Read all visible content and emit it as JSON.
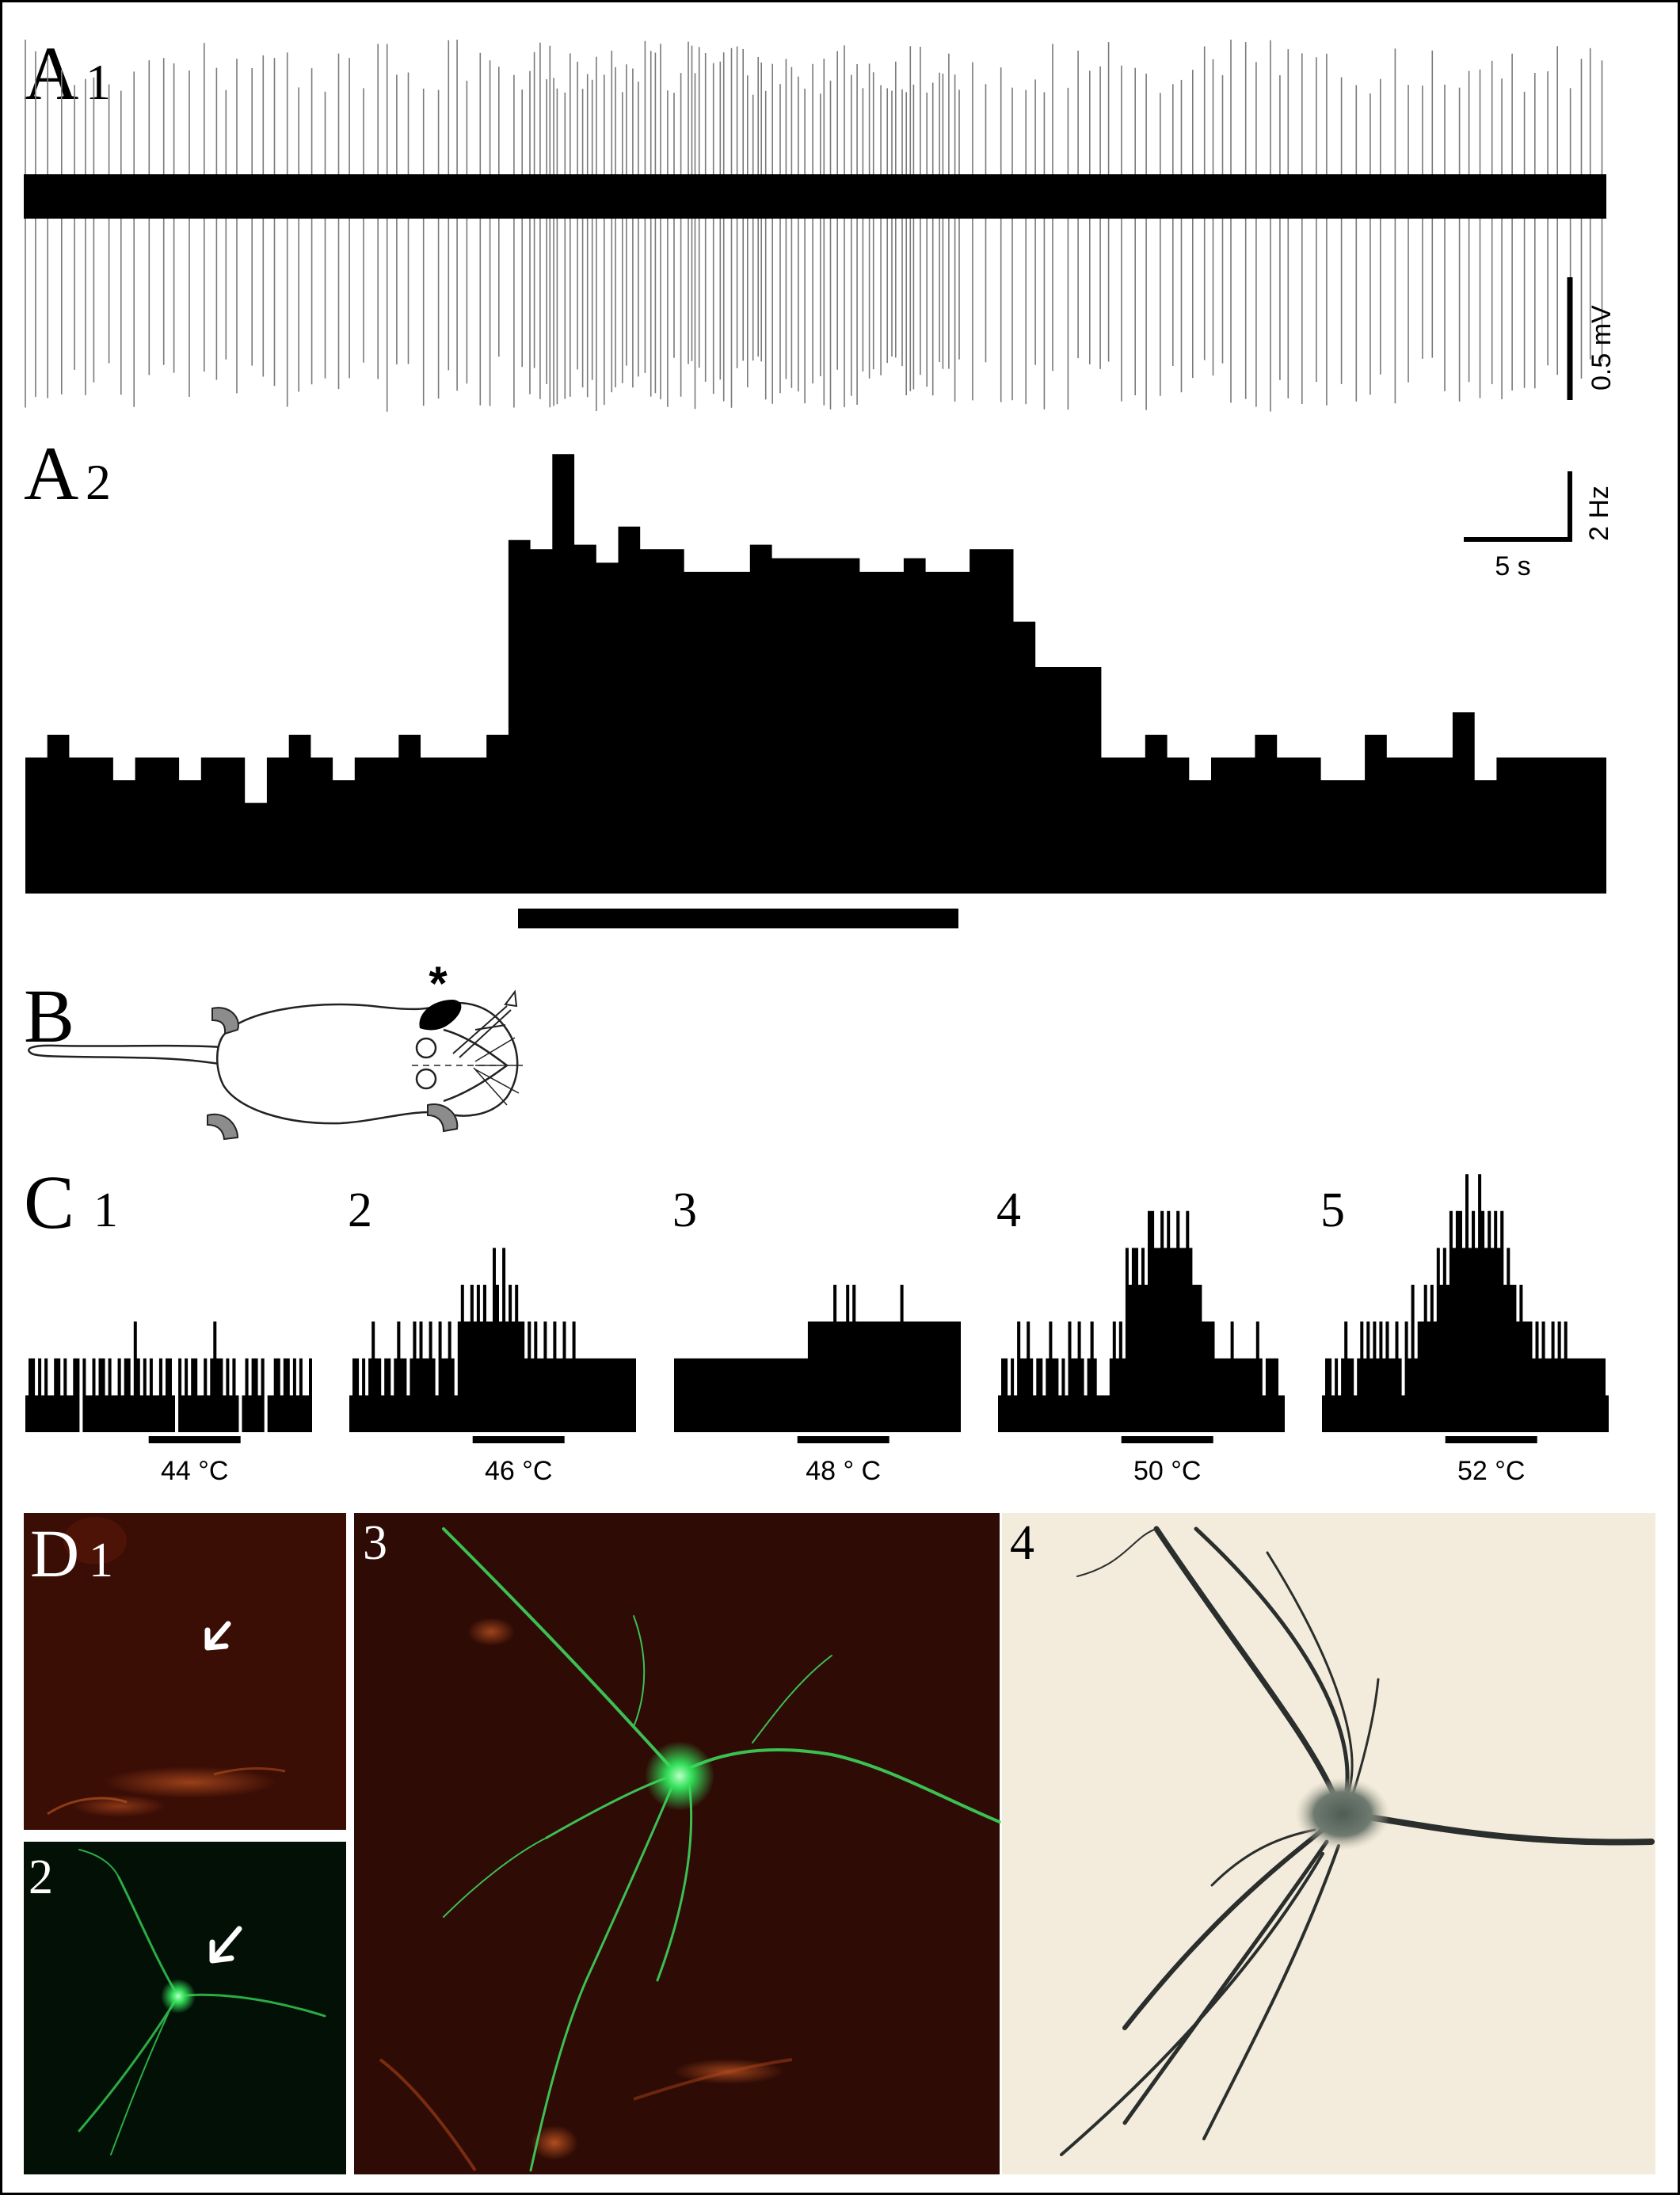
{
  "panels": {
    "A1": {
      "letter": "A",
      "number": "1",
      "scale_label": "0.5 mV"
    },
    "A2": {
      "letter": "A",
      "number": "2",
      "scale_y_label": "2 Hz",
      "scale_x_label": "5 s"
    },
    "B": {
      "letter": "B",
      "marker": "*"
    },
    "C": {
      "letter": "C"
    },
    "D": {
      "letter": "D",
      "sub_labels": [
        "1",
        "2",
        "3",
        "4"
      ]
    }
  },
  "colors": {
    "trace": "#7a7a7a",
    "trace_core": "#000000",
    "bars": "#000000",
    "paw_gray": "#8c8c8c",
    "red_tissue": "#3a0d05",
    "green_tissue": "#031006",
    "brightfield": "#f3ecdc",
    "fluor_green": "#3fe060",
    "fluor_red": "#d25a1e"
  },
  "chart_data": [
    {
      "id": "A2",
      "type": "bar",
      "title": "",
      "xlabel": "",
      "ylabel": "",
      "bin_unit": "s",
      "bin_width_s": 1.0,
      "y_unit": "Hz",
      "stimulus_bins": [
        16,
        30
      ],
      "values": [
        3.0,
        3.5,
        3.0,
        3.0,
        2.5,
        3.0,
        3.0,
        2.5,
        3.0,
        3.0,
        2.0,
        3.0,
        3.5,
        3.0,
        2.5,
        3.0,
        3.0,
        3.5,
        3.0,
        3.0,
        3.0,
        3.5,
        7.8,
        7.6,
        9.7,
        7.7,
        7.3,
        8.1,
        7.6,
        7.6,
        7.1,
        7.1,
        7.1,
        7.7,
        7.4,
        7.4,
        7.4,
        7.4,
        7.1,
        7.1,
        7.4,
        7.1,
        7.1,
        7.6,
        7.6,
        6.0,
        5.0,
        5.0,
        5.0,
        3.0,
        3.0,
        3.5,
        3.0,
        2.5,
        3.0,
        3.0,
        3.5,
        3.0,
        3.0,
        2.5,
        2.5,
        3.5,
        3.0,
        3.0,
        3.0,
        4.0,
        2.5,
        3.0,
        3.0,
        3.0,
        3.0,
        3.0
      ]
    },
    {
      "id": "C1",
      "type": "bar",
      "label": "1",
      "stimulus": "44 °C",
      "values": [
        1,
        2,
        2,
        1,
        2,
        1,
        2,
        1,
        1,
        2,
        2,
        1,
        2,
        1,
        1,
        2,
        2,
        0,
        2,
        1,
        1,
        2,
        1,
        2,
        2,
        1,
        2,
        1,
        1,
        2,
        1,
        2,
        2,
        1,
        3,
        2,
        1,
        2,
        1,
        2,
        1,
        1,
        2,
        1,
        2,
        2,
        1,
        0,
        2,
        1,
        2,
        1,
        2,
        2,
        1,
        1,
        2,
        1,
        2,
        3,
        2,
        2,
        1,
        2,
        1,
        2,
        1,
        0,
        1,
        2,
        1,
        2,
        2,
        1,
        2,
        0,
        1,
        1,
        2,
        2,
        1,
        2,
        2,
        1,
        2,
        1,
        2,
        1,
        1,
        2
      ]
    },
    {
      "id": "C2",
      "type": "bar",
      "label": "2",
      "stimulus": "46 °C",
      "values": [
        1,
        2,
        2,
        1,
        2,
        1,
        2,
        3,
        2,
        2,
        1,
        2,
        2,
        1,
        2,
        3,
        2,
        2,
        1,
        2,
        3,
        2,
        3,
        2,
        2,
        3,
        2,
        1,
        3,
        2,
        2,
        3,
        2,
        1,
        3,
        4,
        3,
        3,
        4,
        3,
        4,
        3,
        4,
        3,
        3,
        5,
        4,
        3,
        5,
        3,
        4,
        3,
        4,
        3,
        3,
        2,
        3,
        2,
        3,
        2,
        2,
        3,
        2,
        2,
        3,
        2,
        2,
        3,
        2,
        2,
        3,
        2,
        2,
        2,
        2,
        2,
        2,
        2,
        2,
        2,
        2,
        2,
        2,
        2,
        2,
        2,
        2,
        2,
        2,
        2
      ]
    },
    {
      "id": "C3",
      "type": "bar",
      "label": "3",
      "stimulus": "48 ° C",
      "values": [
        2,
        2,
        2,
        2,
        2,
        2,
        2,
        2,
        2,
        2,
        2,
        2,
        2,
        2,
        2,
        2,
        2,
        2,
        2,
        2,
        2,
        2,
        2,
        2,
        2,
        2,
        2,
        2,
        2,
        2,
        2,
        2,
        2,
        2,
        2,
        2,
        2,
        2,
        2,
        2,
        2,
        2,
        3,
        3,
        3,
        3,
        3,
        3,
        3,
        3,
        4,
        3,
        3,
        3,
        4,
        3,
        4,
        3,
        3,
        3,
        3,
        3,
        3,
        3,
        3,
        3,
        3,
        3,
        3,
        3,
        3,
        4,
        3,
        3,
        3,
        3,
        3,
        3,
        3,
        3,
        3,
        3,
        3,
        3,
        3,
        3,
        3,
        3,
        3,
        3
      ]
    },
    {
      "id": "C4",
      "type": "bar",
      "label": "4",
      "stimulus": "50 °C",
      "values": [
        1,
        2,
        2,
        1,
        2,
        1,
        3,
        2,
        2,
        3,
        2,
        1,
        2,
        2,
        1,
        2,
        3,
        2,
        2,
        1,
        2,
        1,
        3,
        2,
        2,
        3,
        2,
        1,
        2,
        3,
        2,
        1,
        1,
        1,
        1,
        2,
        3,
        2,
        3,
        2,
        5,
        4,
        5,
        5,
        4,
        5,
        4,
        6,
        6,
        5,
        5,
        6,
        5,
        6,
        5,
        5,
        6,
        5,
        5,
        6,
        5,
        4,
        4,
        4,
        3,
        3,
        3,
        3,
        2,
        2,
        2,
        2,
        2,
        3,
        2,
        2,
        2,
        2,
        2,
        2,
        2,
        3,
        2,
        1,
        2,
        2,
        2,
        2,
        1,
        1
      ]
    },
    {
      "id": "C5",
      "type": "bar",
      "label": "5",
      "stimulus": "52 °C",
      "values": [
        1,
        2,
        2,
        1,
        2,
        1,
        2,
        3,
        2,
        2,
        1,
        2,
        3,
        2,
        3,
        2,
        3,
        2,
        3,
        2,
        3,
        2,
        2,
        3,
        2,
        1,
        3,
        2,
        4,
        2,
        3,
        3,
        4,
        3,
        4,
        3,
        5,
        4,
        5,
        4,
        6,
        5,
        6,
        6,
        5,
        7,
        5,
        6,
        5,
        7,
        6,
        5,
        6,
        5,
        6,
        5,
        6,
        4,
        5,
        4,
        4,
        3,
        4,
        3,
        3,
        3,
        2,
        3,
        2,
        3,
        2,
        2,
        3,
        2,
        3,
        2,
        3,
        2,
        2,
        2,
        2,
        2,
        2,
        2,
        2,
        2,
        2,
        2,
        2,
        1
      ]
    }
  ]
}
